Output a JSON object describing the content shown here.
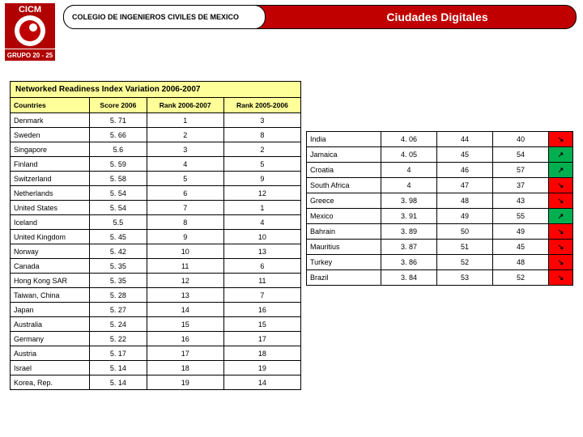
{
  "header": {
    "org": "COLEGIO DE INGENIEROS CIVILES DE MEXICO",
    "title": "Ciudades Digitales",
    "logo_top": "CICM",
    "logo_bottom": "GRUPO 20 - 25",
    "red": "#c00000",
    "yellow": "#ffff99",
    "arrow_down_bg": "#ff0000",
    "arrow_up_bg": "#00b050"
  },
  "left": {
    "title": "Networked Readiness Index Variation 2006-2007",
    "columns": [
      "Countries",
      "Score 2006",
      "Rank 2006-2007",
      "Rank 2005-2006"
    ],
    "rows": [
      [
        "Denmark",
        "5. 71",
        "1",
        "3"
      ],
      [
        "Sweden",
        "5. 66",
        "2",
        "8"
      ],
      [
        "Singapore",
        "5.6",
        "3",
        "2"
      ],
      [
        "Finland",
        "5. 59",
        "4",
        "5"
      ],
      [
        "Switzerland",
        "5. 58",
        "5",
        "9"
      ],
      [
        "Netherlands",
        "5. 54",
        "6",
        "12"
      ],
      [
        "United States",
        "5. 54",
        "7",
        "1"
      ],
      [
        "Iceland",
        "5.5",
        "8",
        "4"
      ],
      [
        "United Kingdom",
        "5. 45",
        "9",
        "10"
      ],
      [
        "Norway",
        "5. 42",
        "10",
        "13"
      ],
      [
        "Canada",
        "5. 35",
        "11",
        "6"
      ],
      [
        "Hong Kong SAR",
        "5. 35",
        "12",
        "11"
      ],
      [
        "Taiwan, China",
        "5. 28",
        "13",
        "7"
      ],
      [
        "Japan",
        "5. 27",
        "14",
        "16"
      ],
      [
        "Australia",
        "5. 24",
        "15",
        "15"
      ],
      [
        "Germany",
        "5. 22",
        "16",
        "17"
      ],
      [
        "Austria",
        "5. 17",
        "17",
        "18"
      ],
      [
        "Israel",
        "5. 14",
        "18",
        "19"
      ],
      [
        "Korea, Rep.",
        "5. 14",
        "19",
        "14"
      ]
    ]
  },
  "right": {
    "rows": [
      [
        "India",
        "4. 06",
        "44",
        "40",
        "down"
      ],
      [
        "Jamaica",
        "4. 05",
        "45",
        "54",
        "up"
      ],
      [
        "Croatia",
        "4",
        "46",
        "57",
        "up"
      ],
      [
        "South Africa",
        "4",
        "47",
        "37",
        "down"
      ],
      [
        "Greece",
        "3. 98",
        "48",
        "43",
        "down"
      ],
      [
        "Mexico",
        "3. 91",
        "49",
        "55",
        "up"
      ],
      [
        "Bahrain",
        "3. 89",
        "50",
        "49",
        "down"
      ],
      [
        "Mauritius",
        "3. 87",
        "51",
        "45",
        "down"
      ],
      [
        "Turkey",
        "3. 86",
        "52",
        "48",
        "down"
      ],
      [
        "Brazil",
        "3. 84",
        "53",
        "52",
        "down"
      ]
    ]
  }
}
